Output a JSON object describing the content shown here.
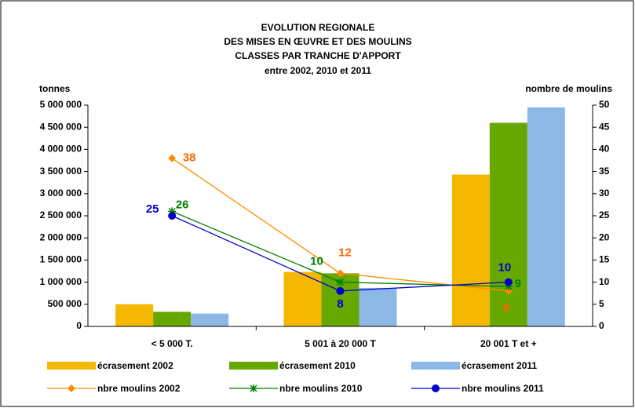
{
  "chart_data": {
    "type": "bar-line",
    "title": [
      "EVOLUTION REGIONALE",
      "DES MISES EN ŒUVRE ET DES MOULINS",
      "CLASSES PAR TRANCHE D'APPORT",
      "entre 2002, 2010 et 2011"
    ],
    "y_label": "tonnes",
    "y2_label": "nombre de moulins",
    "categories": [
      "< 5 000 T.",
      "5 001 à 20 000 T",
      "20 001 T et +"
    ],
    "series": [
      {
        "name": "écrasement 2002",
        "type": "bar",
        "color": "#f5b800",
        "values": [
          500000,
          1230000,
          3430000
        ]
      },
      {
        "name": "écrasement 2010",
        "type": "bar",
        "color": "#66a800",
        "values": [
          330000,
          1200000,
          4600000
        ]
      },
      {
        "name": "écrasement 2011",
        "type": "bar",
        "color": "#8db8e6",
        "values": [
          290000,
          870000,
          4950000
        ]
      },
      {
        "name": "nbre moulins 2002",
        "type": "line",
        "axis": "y2",
        "marker": "diamond",
        "color": "#ff8c00",
        "label_color": "#ff6600",
        "values": [
          38,
          12,
          8
        ]
      },
      {
        "name": "nbre moulins 2010",
        "type": "line",
        "axis": "y2",
        "marker": "star",
        "color": "#008000",
        "label_color": "#008000",
        "values": [
          26,
          10,
          9
        ]
      },
      {
        "name": "nbre moulins 2011",
        "type": "line",
        "axis": "y2",
        "marker": "circle",
        "color": "#0000cc",
        "label_color": "#0000cc",
        "values": [
          25,
          8,
          10
        ]
      }
    ],
    "ylim": [
      0,
      5000000
    ],
    "yticks": [
      0,
      {
        "value": 500000,
        "label": "500 000"
      },
      {
        "value": 1000000,
        "label": "1 000 000"
      },
      {
        "value": 1500000,
        "label": "1 500 000"
      },
      {
        "value": 2000000,
        "label": "2 000 000"
      },
      {
        "value": 2500000,
        "label": "2 500 000"
      },
      {
        "value": 3000000,
        "label": "3 000 000"
      },
      {
        "value": 3500000,
        "label": "3 500 000"
      },
      {
        "value": 4000000,
        "label": "4 000 000"
      },
      {
        "value": 4500000,
        "label": "4 500 000"
      },
      {
        "value": 5000000,
        "label": "5 000 000"
      }
    ],
    "y2lim": [
      0,
      50
    ],
    "y2ticks": [
      0,
      5,
      10,
      15,
      20,
      25,
      30,
      35,
      40,
      45,
      50
    ],
    "grid": false
  }
}
